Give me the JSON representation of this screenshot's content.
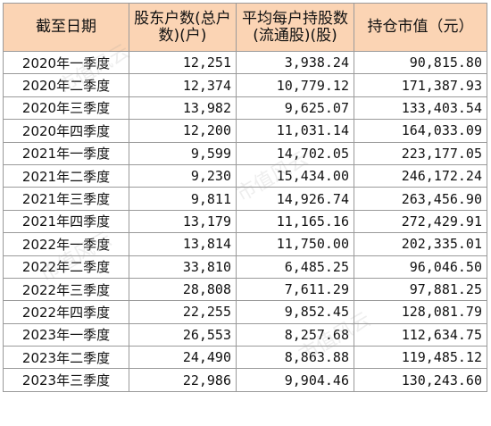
{
  "table": {
    "headers": [
      "截至日期",
      "股东户数(总户数)(户)",
      "平均每户持股数(流通股)(股)",
      "持仓市值（元）"
    ],
    "rows": [
      {
        "date": "2020年一季度",
        "holders": "12,251",
        "avg_shares": "3,938.24",
        "market_value": "90,815.80"
      },
      {
        "date": "2020年二季度",
        "holders": "12,374",
        "avg_shares": "10,779.12",
        "market_value": "171,387.93"
      },
      {
        "date": "2020年三季度",
        "holders": "13,982",
        "avg_shares": "9,625.07",
        "market_value": "133,403.54"
      },
      {
        "date": "2020年四季度",
        "holders": "12,200",
        "avg_shares": "11,031.14",
        "market_value": "164,033.09"
      },
      {
        "date": "2021年一季度",
        "holders": "9,599",
        "avg_shares": "14,702.05",
        "market_value": "223,177.05"
      },
      {
        "date": "2021年二季度",
        "holders": "9,230",
        "avg_shares": "15,434.00",
        "market_value": "246,172.24"
      },
      {
        "date": "2021年三季度",
        "holders": "9,811",
        "avg_shares": "14,926.74",
        "market_value": "263,456.90"
      },
      {
        "date": "2021年四季度",
        "holders": "13,179",
        "avg_shares": "11,165.16",
        "market_value": "272,429.91"
      },
      {
        "date": "2022年一季度",
        "holders": "13,814",
        "avg_shares": "11,750.00",
        "market_value": "202,335.01"
      },
      {
        "date": "2022年二季度",
        "holders": "33,810",
        "avg_shares": "6,485.25",
        "market_value": "96,046.50"
      },
      {
        "date": "2022年三季度",
        "holders": "28,808",
        "avg_shares": "7,611.29",
        "market_value": "97,881.25"
      },
      {
        "date": "2022年四季度",
        "holders": "22,255",
        "avg_shares": "9,852.45",
        "market_value": "128,081.79"
      },
      {
        "date": "2023年一季度",
        "holders": "26,553",
        "avg_shares": "8,257.68",
        "market_value": "112,634.75"
      },
      {
        "date": "2023年二季度",
        "holders": "24,490",
        "avg_shares": "8,863.88",
        "market_value": "119,485.12"
      },
      {
        "date": "2023年三季度",
        "holders": "22,986",
        "avg_shares": "9,904.46",
        "market_value": "130,243.60"
      }
    ]
  },
  "watermark": {
    "text": "市值风云"
  },
  "colors": {
    "header_bg": "#fbd4b4",
    "border": "#9a9a9a"
  }
}
